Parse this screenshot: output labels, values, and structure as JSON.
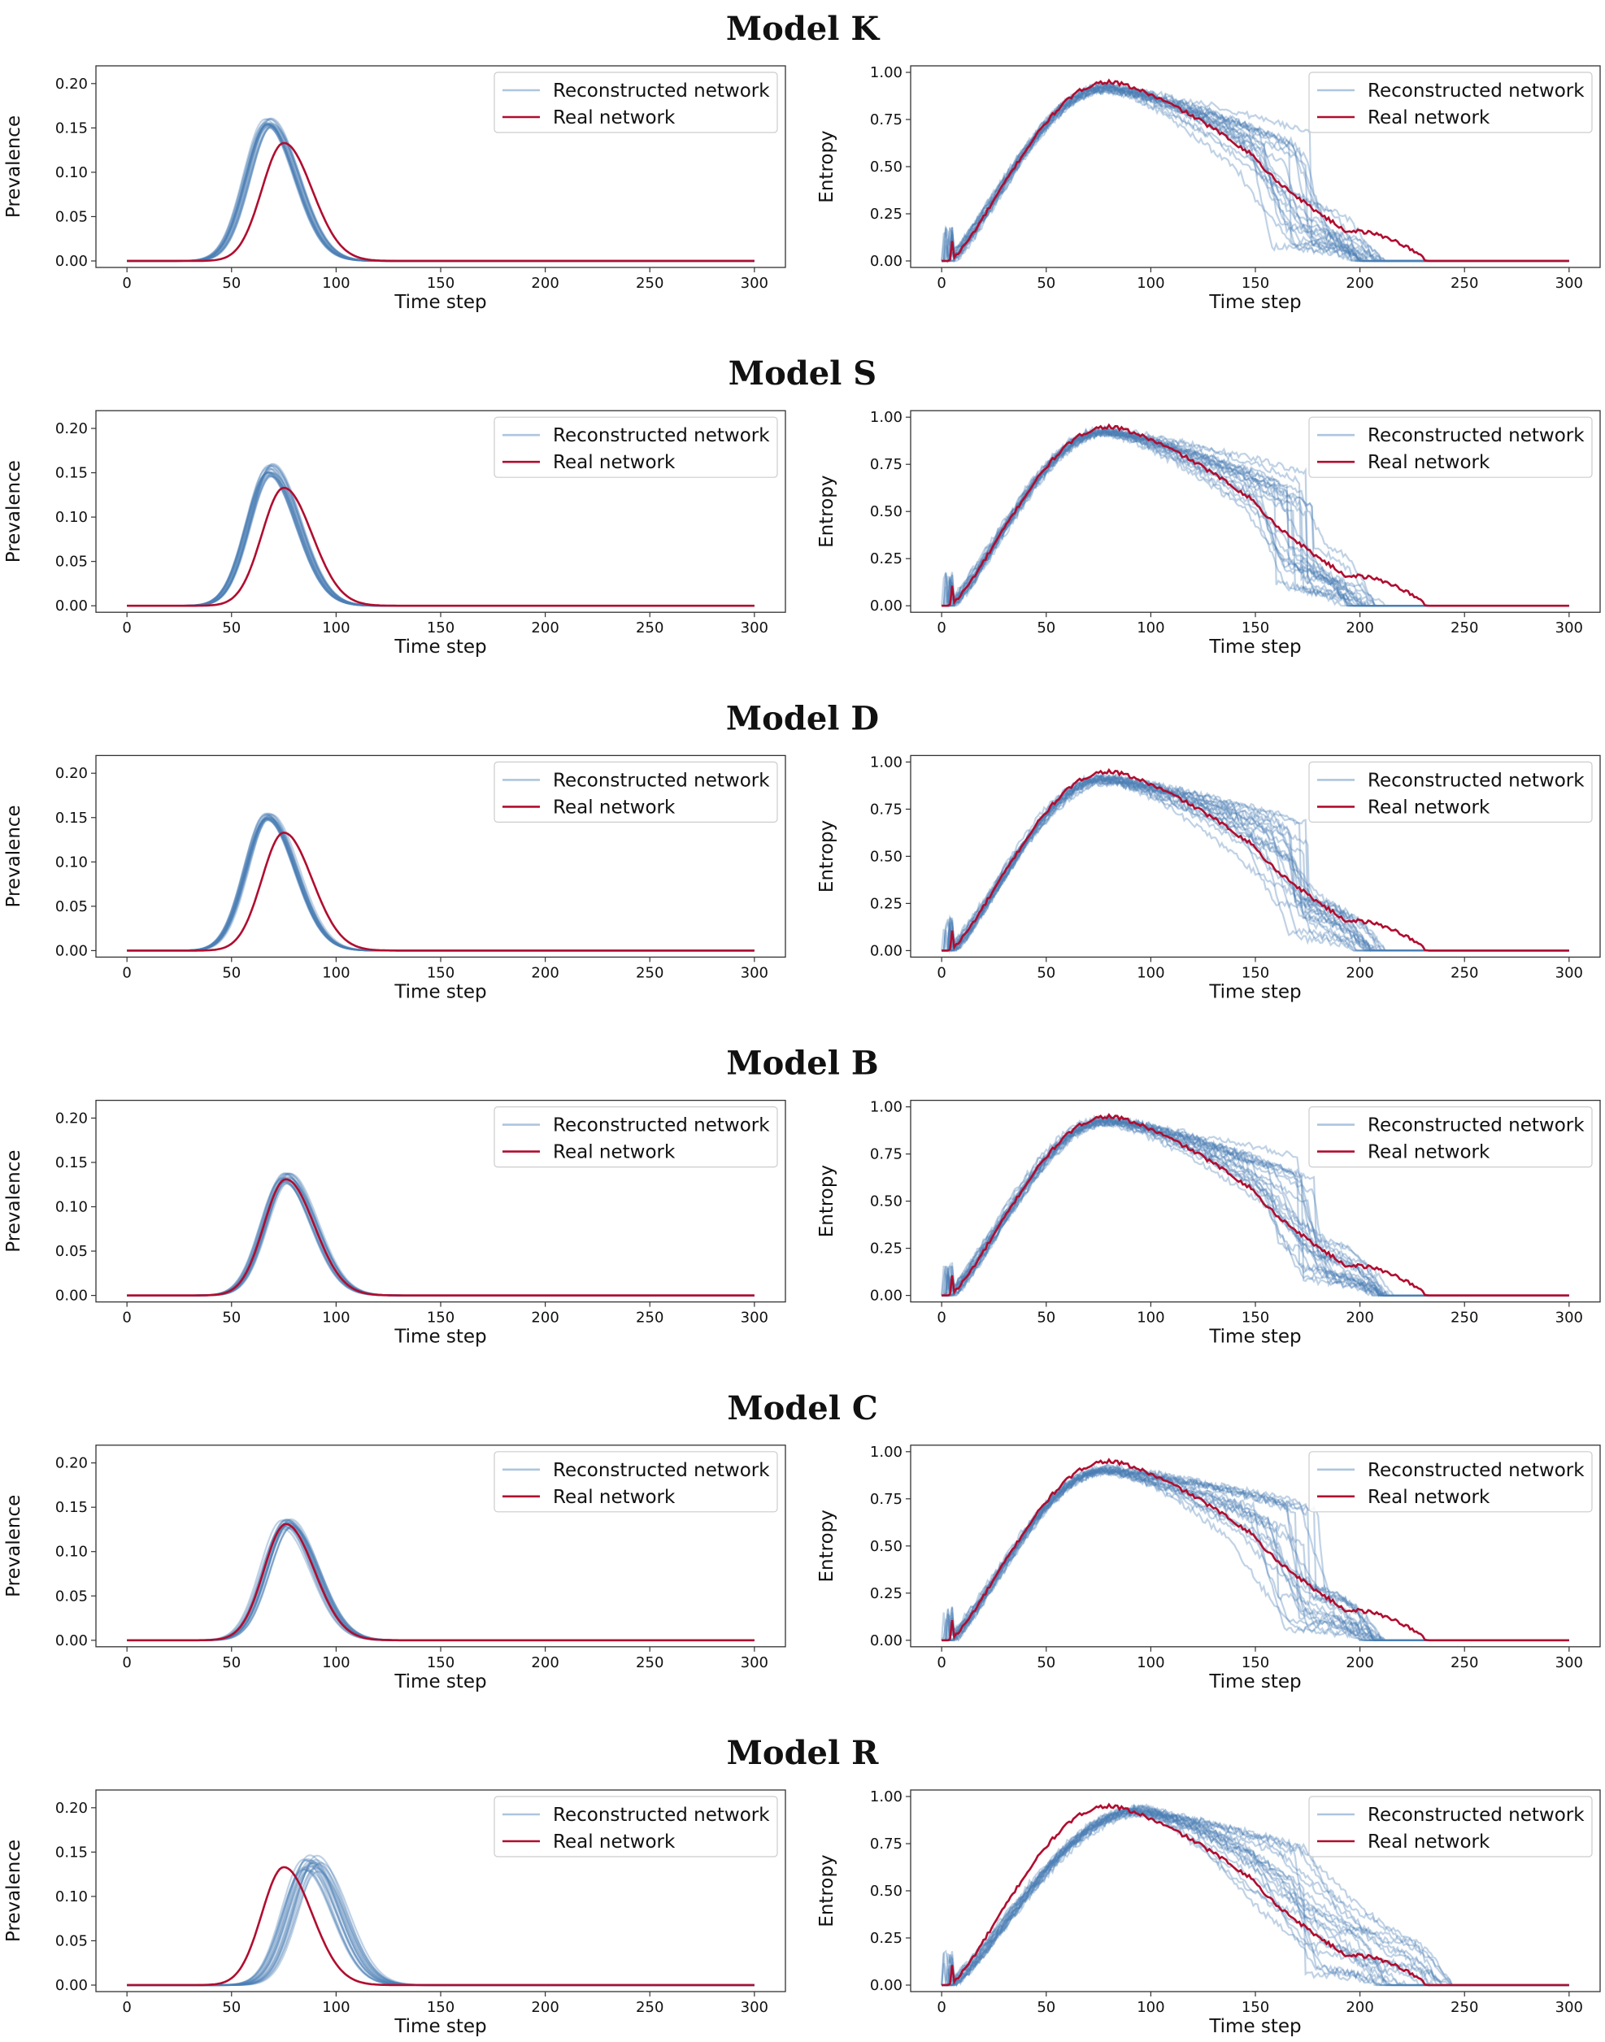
{
  "figure": {
    "legend": {
      "reconstructed_label": "Reconstructed network",
      "real_label": "Real network"
    },
    "colors": {
      "reconstructed": "#4a7fb5",
      "real": "#b00d2f",
      "axes": "#333333",
      "text": "#111111"
    }
  },
  "chart_data": [
    {
      "model_title": "Model K",
      "prevalence": {
        "type": "line",
        "xlabel": "Time step",
        "ylabel": "Prevalence",
        "xlim": [
          0,
          300
        ],
        "ylim": [
          0,
          0.22
        ],
        "xticks": [
          "0",
          "50",
          "100",
          "150",
          "200",
          "250",
          "300"
        ],
        "yticks": [
          "0.00",
          "0.05",
          "0.10",
          "0.15",
          "0.20"
        ],
        "real": {
          "peak_step": 75,
          "peak_value": 0.133
        },
        "reconstructed": {
          "peak_step_range": [
            66,
            70
          ],
          "peak_value_range": [
            0.15,
            0.162
          ],
          "runs": 20
        }
      },
      "entropy": {
        "type": "line",
        "xlabel": "Time step",
        "ylabel": "Entropy",
        "xlim": [
          0,
          300
        ],
        "ylim": [
          0,
          1.0
        ],
        "xticks": [
          "0",
          "50",
          "100",
          "150",
          "200",
          "250",
          "300"
        ],
        "yticks": [
          "0.00",
          "0.25",
          "0.50",
          "0.75",
          "1.00"
        ],
        "real": {
          "peak_step": 80,
          "peak_value": 0.95,
          "end_step": 232
        },
        "reconstructed": {
          "peak_step": 78,
          "peak_value": 0.93,
          "end_step_range": [
            196,
            212
          ],
          "runs": 20
        }
      }
    },
    {
      "model_title": "Model S",
      "prevalence": {
        "type": "line",
        "xlabel": "Time step",
        "ylabel": "Prevalence",
        "xlim": [
          0,
          300
        ],
        "ylim": [
          0,
          0.22
        ],
        "xticks": [
          "0",
          "50",
          "100",
          "150",
          "200",
          "250",
          "300"
        ],
        "yticks": [
          "0.00",
          "0.05",
          "0.10",
          "0.15",
          "0.20"
        ],
        "real": {
          "peak_step": 75,
          "peak_value": 0.133
        },
        "reconstructed": {
          "peak_step_range": [
            67,
            70
          ],
          "peak_value_range": [
            0.145,
            0.16
          ],
          "runs": 20
        }
      },
      "entropy": {
        "type": "line",
        "xlabel": "Time step",
        "ylabel": "Entropy",
        "xlim": [
          0,
          300
        ],
        "ylim": [
          0,
          1.0
        ],
        "xticks": [
          "0",
          "50",
          "100",
          "150",
          "200",
          "250",
          "300"
        ],
        "yticks": [
          "0.00",
          "0.25",
          "0.50",
          "0.75",
          "1.00"
        ],
        "real": {
          "peak_step": 80,
          "peak_value": 0.95,
          "end_step": 232
        },
        "reconstructed": {
          "peak_step": 78,
          "peak_value": 0.94,
          "end_step_range": [
            190,
            212
          ],
          "runs": 20
        }
      }
    },
    {
      "model_title": "Model D",
      "prevalence": {
        "type": "line",
        "xlabel": "Time step",
        "ylabel": "Prevalence",
        "xlim": [
          0,
          300
        ],
        "ylim": [
          0,
          0.22
        ],
        "xticks": [
          "0",
          "50",
          "100",
          "150",
          "200",
          "250",
          "300"
        ],
        "yticks": [
          "0.00",
          "0.05",
          "0.10",
          "0.15",
          "0.20"
        ],
        "real": {
          "peak_step": 75,
          "peak_value": 0.133
        },
        "reconstructed": {
          "peak_step_range": [
            66,
            69
          ],
          "peak_value_range": [
            0.145,
            0.155
          ],
          "runs": 20
        }
      },
      "entropy": {
        "type": "line",
        "xlabel": "Time step",
        "ylabel": "Entropy",
        "xlim": [
          0,
          300
        ],
        "ylim": [
          0,
          1.0
        ],
        "xticks": [
          "0",
          "50",
          "100",
          "150",
          "200",
          "250",
          "300"
        ],
        "yticks": [
          "0.00",
          "0.25",
          "0.50",
          "0.75",
          "1.00"
        ],
        "real": {
          "peak_step": 80,
          "peak_value": 0.95,
          "end_step": 232
        },
        "reconstructed": {
          "peak_step": 78,
          "peak_value": 0.92,
          "end_step_range": [
            196,
            214
          ],
          "runs": 20
        }
      }
    },
    {
      "model_title": "Model B",
      "prevalence": {
        "type": "line",
        "xlabel": "Time step",
        "ylabel": "Prevalence",
        "xlim": [
          0,
          300
        ],
        "ylim": [
          0,
          0.22
        ],
        "xticks": [
          "0",
          "50",
          "100",
          "150",
          "200",
          "250",
          "300"
        ],
        "yticks": [
          "0.00",
          "0.05",
          "0.10",
          "0.15",
          "0.20"
        ],
        "real": {
          "peak_step": 76,
          "peak_value": 0.131
        },
        "reconstructed": {
          "peak_step_range": [
            74,
            78
          ],
          "peak_value_range": [
            0.125,
            0.138
          ],
          "runs": 20
        }
      },
      "entropy": {
        "type": "line",
        "xlabel": "Time step",
        "ylabel": "Entropy",
        "xlim": [
          0,
          300
        ],
        "ylim": [
          0,
          1.0
        ],
        "xticks": [
          "0",
          "50",
          "100",
          "150",
          "200",
          "250",
          "300"
        ],
        "yticks": [
          "0.00",
          "0.25",
          "0.50",
          "0.75",
          "1.00"
        ],
        "real": {
          "peak_step": 80,
          "peak_value": 0.95,
          "end_step": 232
        },
        "reconstructed": {
          "peak_step": 79,
          "peak_value": 0.94,
          "end_step_range": [
            204,
            216
          ],
          "runs": 20
        }
      }
    },
    {
      "model_title": "Model C",
      "prevalence": {
        "type": "line",
        "xlabel": "Time step",
        "ylabel": "Prevalence",
        "xlim": [
          0,
          300
        ],
        "ylim": [
          0,
          0.22
        ],
        "xticks": [
          "0",
          "50",
          "100",
          "150",
          "200",
          "250",
          "300"
        ],
        "yticks": [
          "0.00",
          "0.05",
          "0.10",
          "0.15",
          "0.20"
        ],
        "real": {
          "peak_step": 76,
          "peak_value": 0.131
        },
        "reconstructed": {
          "peak_step_range": [
            74,
            79
          ],
          "peak_value_range": [
            0.125,
            0.138
          ],
          "runs": 20
        }
      },
      "entropy": {
        "type": "line",
        "xlabel": "Time step",
        "ylabel": "Entropy",
        "xlim": [
          0,
          300
        ],
        "ylim": [
          0,
          1.0
        ],
        "xticks": [
          "0",
          "50",
          "100",
          "150",
          "200",
          "250",
          "300"
        ],
        "yticks": [
          "0.00",
          "0.25",
          "0.50",
          "0.75",
          "1.00"
        ],
        "real": {
          "peak_step": 80,
          "peak_value": 0.95,
          "end_step": 232
        },
        "reconstructed": {
          "peak_step": 78,
          "peak_value": 0.92,
          "end_step_range": [
            200,
            212
          ],
          "runs": 20
        }
      }
    },
    {
      "model_title": "Model R",
      "prevalence": {
        "type": "line",
        "xlabel": "Time step",
        "ylabel": "Prevalence",
        "xlim": [
          0,
          300
        ],
        "ylim": [
          0,
          0.22
        ],
        "xticks": [
          "0",
          "50",
          "100",
          "150",
          "200",
          "250",
          "300"
        ],
        "yticks": [
          "0.00",
          "0.05",
          "0.10",
          "0.15",
          "0.20"
        ],
        "real": {
          "peak_step": 75,
          "peak_value": 0.133
        },
        "reconstructed": {
          "peak_step_range": [
            84,
            94
          ],
          "peak_value_range": [
            0.128,
            0.147
          ],
          "runs": 20
        }
      },
      "entropy": {
        "type": "line",
        "xlabel": "Time step",
        "ylabel": "Entropy",
        "xlim": [
          0,
          300
        ],
        "ylim": [
          0,
          1.0
        ],
        "xticks": [
          "0",
          "50",
          "100",
          "150",
          "200",
          "250",
          "300"
        ],
        "yticks": [
          "0.00",
          "0.25",
          "0.50",
          "0.75",
          "1.00"
        ],
        "real": {
          "peak_step": 80,
          "peak_value": 0.95,
          "end_step": 232
        },
        "reconstructed": {
          "peak_step": 95,
          "peak_value": 0.94,
          "end_step_range": [
            206,
            250
          ],
          "runs": 20
        }
      }
    }
  ]
}
